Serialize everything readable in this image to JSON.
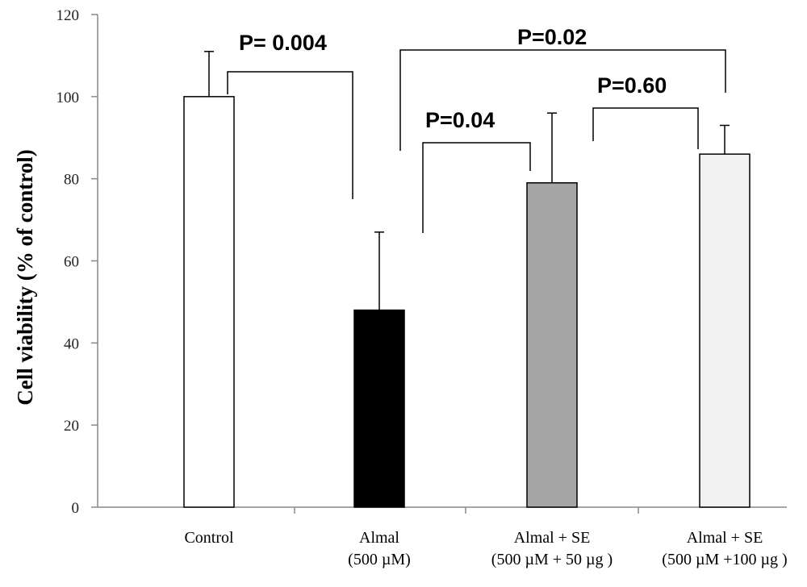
{
  "chart_data": {
    "type": "bar",
    "ylabel": "Cell viability (% of control)",
    "xlabel": "",
    "ylim": [
      0,
      120
    ],
    "yticks": [
      0,
      20,
      40,
      60,
      80,
      100,
      120
    ],
    "grid": false,
    "categories": [
      [
        "Control"
      ],
      [
        "Almal",
        "(500 µM)"
      ],
      [
        "Almal + SE",
        "(500 µM + 50 µg )"
      ],
      [
        "Almal + SE",
        "(500 µM +100 µg )"
      ]
    ],
    "values": [
      100,
      48,
      79,
      86
    ],
    "errors": [
      11,
      19,
      17,
      7
    ],
    "colors": [
      "#ffffff",
      "#000000",
      "#a6a6a6",
      "#f2f2f2"
    ],
    "comparisons": [
      {
        "label": "P= 0.004",
        "from": 0,
        "to": 1
      },
      {
        "label": "P=0.04",
        "from": 1,
        "to": 2
      },
      {
        "label": "P=0.60",
        "from": 2,
        "to": 3
      },
      {
        "label": "P=0.02",
        "from": 1,
        "to": 3
      }
    ]
  }
}
